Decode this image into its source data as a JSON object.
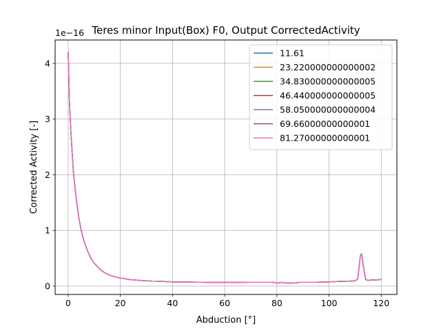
{
  "chart_data": {
    "type": "line",
    "title": "Teres minor Input(Box) F0, Output CorrectedActivity",
    "xlabel": "Abduction [°]",
    "ylabel": "Corrected Activity [-]",
    "y_offset_text": "1e−16",
    "xlim": [
      -5,
      126
    ],
    "ylim": [
      -0.15,
      4.42
    ],
    "x_ticks": [
      0,
      20,
      40,
      60,
      80,
      100,
      120
    ],
    "y_ticks": [
      0,
      1,
      2,
      3,
      4
    ],
    "grid": true,
    "legend_position": "top-right",
    "x": [
      0,
      0.5,
      1,
      2,
      3,
      4,
      5,
      6,
      7,
      8,
      9,
      10,
      12,
      14,
      16,
      18,
      20,
      24,
      28,
      32,
      36,
      40,
      50,
      60,
      70,
      78,
      79,
      80,
      81,
      82,
      84,
      86,
      88,
      89,
      90,
      95,
      100,
      104,
      106,
      108,
      110,
      111,
      112,
      112.5,
      113,
      114,
      115,
      116,
      118,
      120
    ],
    "series": [
      {
        "name": "11.61",
        "color": "#1f77b4",
        "y": [
          4.2,
          3.3,
          2.8,
          2.05,
          1.6,
          1.25,
          1.0,
          0.82,
          0.68,
          0.57,
          0.48,
          0.41,
          0.31,
          0.24,
          0.195,
          0.165,
          0.145,
          0.115,
          0.1,
          0.09,
          0.085,
          0.075,
          0.07,
          0.065,
          0.07,
          0.07,
          0.065,
          0.055,
          0.06,
          0.065,
          0.055,
          0.055,
          0.06,
          0.07,
          0.07,
          0.07,
          0.075,
          0.085,
          0.085,
          0.09,
          0.095,
          0.13,
          0.55,
          0.58,
          0.4,
          0.12,
          0.1,
          0.11,
          0.11,
          0.12
        ]
      },
      {
        "name": "23.220000000000002",
        "color": "#ff7f0e",
        "y": [
          4.2,
          3.3,
          2.8,
          2.05,
          1.6,
          1.25,
          1.0,
          0.82,
          0.68,
          0.57,
          0.48,
          0.41,
          0.31,
          0.24,
          0.195,
          0.165,
          0.145,
          0.115,
          0.1,
          0.09,
          0.085,
          0.075,
          0.07,
          0.065,
          0.07,
          0.07,
          0.065,
          0.055,
          0.06,
          0.065,
          0.055,
          0.055,
          0.06,
          0.07,
          0.07,
          0.07,
          0.075,
          0.085,
          0.085,
          0.09,
          0.095,
          0.13,
          0.55,
          0.58,
          0.4,
          0.12,
          0.1,
          0.11,
          0.11,
          0.12
        ]
      },
      {
        "name": "34.830000000000005",
        "color": "#2ca02c",
        "y": [
          4.2,
          3.3,
          2.8,
          2.05,
          1.6,
          1.25,
          1.0,
          0.82,
          0.68,
          0.57,
          0.48,
          0.41,
          0.31,
          0.24,
          0.195,
          0.165,
          0.145,
          0.115,
          0.1,
          0.09,
          0.085,
          0.075,
          0.07,
          0.065,
          0.07,
          0.07,
          0.065,
          0.055,
          0.06,
          0.065,
          0.055,
          0.055,
          0.06,
          0.07,
          0.07,
          0.07,
          0.075,
          0.085,
          0.085,
          0.09,
          0.095,
          0.13,
          0.55,
          0.58,
          0.4,
          0.12,
          0.1,
          0.11,
          0.11,
          0.12
        ]
      },
      {
        "name": "46.440000000000005",
        "color": "#d62728",
        "y": [
          4.2,
          3.3,
          2.8,
          2.05,
          1.6,
          1.25,
          1.0,
          0.82,
          0.68,
          0.57,
          0.48,
          0.41,
          0.31,
          0.24,
          0.195,
          0.165,
          0.145,
          0.115,
          0.1,
          0.09,
          0.085,
          0.075,
          0.07,
          0.065,
          0.07,
          0.07,
          0.065,
          0.055,
          0.06,
          0.065,
          0.055,
          0.055,
          0.06,
          0.07,
          0.07,
          0.07,
          0.075,
          0.085,
          0.085,
          0.09,
          0.095,
          0.13,
          0.55,
          0.58,
          0.4,
          0.12,
          0.1,
          0.11,
          0.11,
          0.12
        ]
      },
      {
        "name": "58.050000000000004",
        "color": "#9467bd",
        "y": [
          4.2,
          3.3,
          2.8,
          2.05,
          1.6,
          1.25,
          1.0,
          0.82,
          0.68,
          0.57,
          0.48,
          0.41,
          0.31,
          0.24,
          0.195,
          0.165,
          0.145,
          0.115,
          0.1,
          0.09,
          0.085,
          0.075,
          0.07,
          0.065,
          0.07,
          0.07,
          0.065,
          0.055,
          0.06,
          0.065,
          0.055,
          0.055,
          0.06,
          0.07,
          0.07,
          0.07,
          0.075,
          0.085,
          0.085,
          0.09,
          0.095,
          0.13,
          0.55,
          0.58,
          0.4,
          0.12,
          0.1,
          0.11,
          0.11,
          0.12
        ]
      },
      {
        "name": "69.66000000000001",
        "color": "#8c564b",
        "y": [
          4.2,
          3.3,
          2.8,
          2.05,
          1.6,
          1.25,
          1.0,
          0.82,
          0.68,
          0.57,
          0.48,
          0.41,
          0.31,
          0.24,
          0.195,
          0.165,
          0.145,
          0.115,
          0.1,
          0.09,
          0.085,
          0.075,
          0.07,
          0.065,
          0.07,
          0.07,
          0.065,
          0.055,
          0.06,
          0.065,
          0.055,
          0.055,
          0.06,
          0.07,
          0.07,
          0.07,
          0.075,
          0.085,
          0.085,
          0.09,
          0.095,
          0.13,
          0.55,
          0.58,
          0.4,
          0.12,
          0.1,
          0.11,
          0.11,
          0.12
        ]
      },
      {
        "name": "81.27000000000001",
        "color": "#e377c2",
        "y": [
          4.2,
          3.3,
          2.8,
          2.05,
          1.6,
          1.25,
          1.0,
          0.82,
          0.68,
          0.57,
          0.48,
          0.41,
          0.31,
          0.24,
          0.195,
          0.165,
          0.145,
          0.115,
          0.1,
          0.09,
          0.085,
          0.075,
          0.07,
          0.065,
          0.07,
          0.07,
          0.065,
          0.055,
          0.06,
          0.065,
          0.055,
          0.055,
          0.06,
          0.07,
          0.07,
          0.07,
          0.075,
          0.085,
          0.085,
          0.09,
          0.095,
          0.13,
          0.55,
          0.58,
          0.4,
          0.12,
          0.1,
          0.11,
          0.11,
          0.12
        ]
      }
    ]
  }
}
